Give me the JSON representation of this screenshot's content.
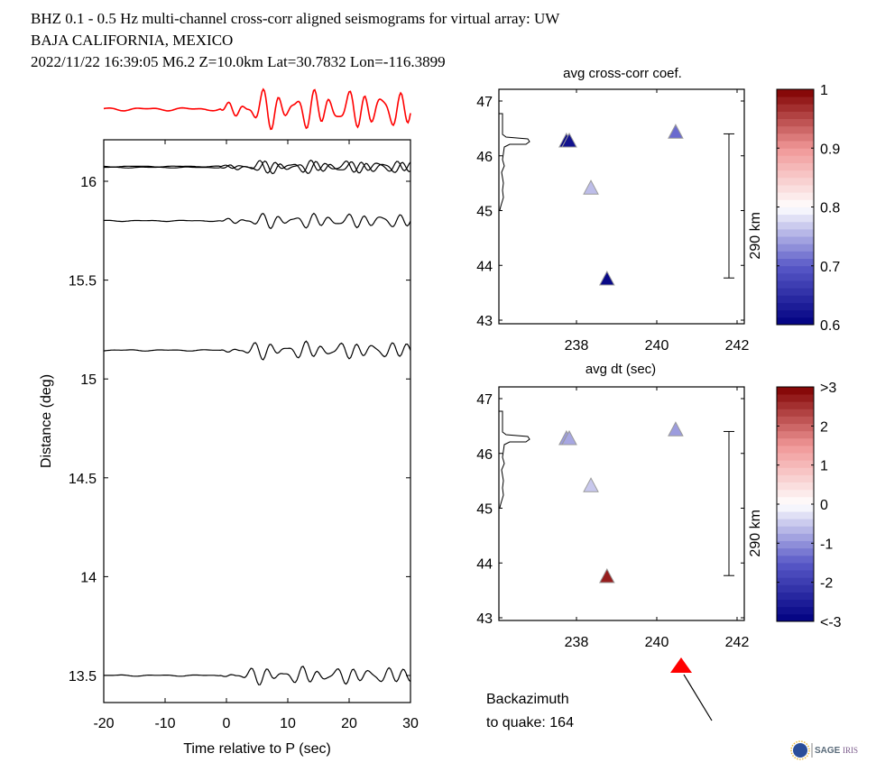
{
  "header": {
    "line1": "BHZ  0.1 - 0.5 Hz  multi-channel cross-corr aligned seismograms for virtual array: UW",
    "line2": "BAJA CALIFORNIA, MEXICO",
    "line3": "2022/11/22  16:39:05  M6.2  Z=10.0km Lat=30.7832 Lon=-116.3899"
  },
  "chart_data": [
    {
      "type": "line",
      "name": "seismogram-section",
      "title": "",
      "xlabel": "Time relative to P (sec)",
      "ylabel": "Distance (deg)",
      "xlim": [
        -20,
        30
      ],
      "ylim": [
        13.3,
        16.21
      ],
      "xticks": [
        "-20",
        "-10",
        "0",
        "10",
        "20",
        "30"
      ],
      "yticks": [
        "13.5",
        "14",
        "14.5",
        "15",
        "15.5",
        "16"
      ],
      "ytick_values": [
        13.5,
        14,
        14.5,
        15,
        15.5,
        16
      ],
      "xtick_values": [
        -20,
        -10,
        0,
        10,
        20,
        30
      ],
      "stack_trace": {
        "color": "#ff0000",
        "label": "stacked beam"
      },
      "series": [
        {
          "name": "trace-1",
          "distance": 16.07,
          "color": "#000000"
        },
        {
          "name": "trace-2",
          "distance": 16.075,
          "color": "#000000"
        },
        {
          "name": "trace-3",
          "distance": 15.8,
          "color": "#000000"
        },
        {
          "name": "trace-4",
          "distance": 15.145,
          "color": "#000000"
        },
        {
          "name": "trace-5",
          "distance": 13.5,
          "color": "#000000"
        }
      ]
    },
    {
      "type": "scatter",
      "name": "cross-corr-map",
      "title": "avg cross-corr coef.",
      "xlabel": "",
      "xticks": [
        "238",
        "240",
        "242"
      ],
      "xtick_values": [
        238,
        240,
        242
      ],
      "yticks": [
        "43",
        "44",
        "45",
        "46",
        "47"
      ],
      "ytick_values": [
        43,
        44,
        45,
        46,
        47
      ],
      "xlim": [
        236.2,
        242.2
      ],
      "ylim": [
        42.93,
        47.2
      ],
      "scale_bar_label": "290 km",
      "colorbar": {
        "min": 0.6,
        "max": 1.0,
        "ticks": [
          "0.6",
          "0.7",
          "0.8",
          "0.9",
          "1"
        ],
        "tick_values": [
          0.6,
          0.7,
          0.8,
          0.9,
          1.0
        ]
      },
      "points": [
        {
          "lon": 237.75,
          "lat": 46.26,
          "value": 0.61
        },
        {
          "lon": 237.82,
          "lat": 46.26,
          "value": 0.62
        },
        {
          "lon": 238.36,
          "lat": 45.4,
          "value": 0.76
        },
        {
          "lon": 240.47,
          "lat": 46.42,
          "value": 0.71
        },
        {
          "lon": 238.76,
          "lat": 43.74,
          "value": 0.61
        }
      ]
    },
    {
      "type": "scatter",
      "name": "avg-dt-map",
      "title": "avg dt (sec)",
      "xlabel": "",
      "xticks": [
        "238",
        "240",
        "242"
      ],
      "xtick_values": [
        238,
        240,
        242
      ],
      "yticks": [
        "43",
        "44",
        "45",
        "46",
        "47"
      ],
      "ytick_values": [
        43,
        44,
        45,
        46,
        47
      ],
      "xlim": [
        236.2,
        242.2
      ],
      "ylim": [
        42.93,
        47.2
      ],
      "scale_bar_label": "290 km",
      "colorbar": {
        "min": -3,
        "max": 3,
        "ticks": [
          "<-3",
          "-2",
          "-1",
          "0",
          "1",
          "2",
          ">3"
        ],
        "tick_values": [
          -3,
          -2,
          -1,
          0,
          1,
          2,
          3
        ]
      },
      "points": [
        {
          "lon": 237.75,
          "lat": 46.26,
          "value": -0.9
        },
        {
          "lon": 237.82,
          "lat": 46.26,
          "value": -0.8
        },
        {
          "lon": 238.36,
          "lat": 45.4,
          "value": -0.5
        },
        {
          "lon": 240.47,
          "lat": 46.42,
          "value": -0.9
        },
        {
          "lon": 238.76,
          "lat": 43.74,
          "value": 2.7
        }
      ]
    }
  ],
  "backazimuth": {
    "label_line1": "Backazimuth",
    "label_line2": "to quake:  164",
    "value": 164,
    "marker_color": "#ff0000"
  },
  "logo": {
    "text": "SAGE",
    "text2": "IRIS"
  }
}
